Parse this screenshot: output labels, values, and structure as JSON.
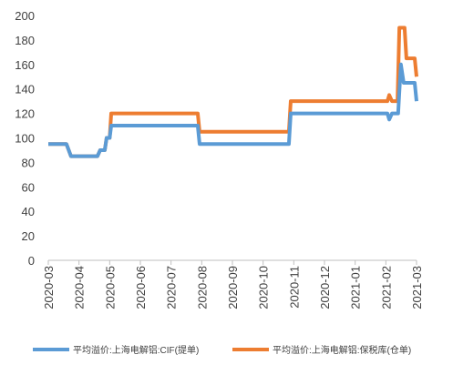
{
  "chart_data": {
    "type": "line",
    "xlim": [
      0,
      12
    ],
    "xticks": [
      {
        "value": 0,
        "label": "2020-03"
      },
      {
        "value": 1,
        "label": "2020-04"
      },
      {
        "value": 2,
        "label": "2020-05"
      },
      {
        "value": 3,
        "label": "2020-06"
      },
      {
        "value": 4,
        "label": "2020-07"
      },
      {
        "value": 5,
        "label": "2020-08"
      },
      {
        "value": 6,
        "label": "2020-09"
      },
      {
        "value": 7,
        "label": "2020-10"
      },
      {
        "value": 8,
        "label": "2020-11"
      },
      {
        "value": 9,
        "label": "2020-12"
      },
      {
        "value": 10,
        "label": "2021-01"
      },
      {
        "value": 11,
        "label": "2021-02"
      },
      {
        "value": 12,
        "label": "2021-03"
      }
    ],
    "ylim": [
      0,
      200
    ],
    "yticks": [
      0,
      20,
      40,
      60,
      80,
      100,
      120,
      140,
      160,
      180,
      200
    ],
    "grid": false,
    "legend": "bottom",
    "series": [
      {
        "name": "平均溢价:上海电解铝:CIF(提单)",
        "color": "#5b9bd5",
        "x": [
          0,
          0.59,
          0.74,
          1.6,
          1.69,
          1.84,
          1.9,
          2.0,
          2.05,
          4.87,
          4.93,
          7.84,
          7.9,
          11.05,
          11.11,
          11.2,
          11.4,
          11.49,
          11.58,
          11.94,
          12
        ],
        "values": [
          95,
          95,
          85,
          85,
          90,
          90,
          100,
          100,
          110,
          110,
          95,
          95,
          120,
          120,
          115,
          120,
          120,
          160,
          145,
          145,
          130
        ]
      },
      {
        "name": "平均溢价:上海电解铝:保税库(仓单)",
        "color": "#ed7d31",
        "x": [
          0,
          0.59,
          0.74,
          1.6,
          1.69,
          1.84,
          1.9,
          2.0,
          2.05,
          4.87,
          4.93,
          7.84,
          7.9,
          11.05,
          11.11,
          11.2,
          11.38,
          11.44,
          11.61,
          11.67,
          11.94,
          12
        ],
        "values": [
          95,
          95,
          85,
          85,
          90,
          90,
          100,
          100,
          120,
          120,
          105,
          105,
          130,
          130,
          135,
          130,
          130,
          190,
          190,
          165,
          165,
          150
        ]
      }
    ]
  }
}
